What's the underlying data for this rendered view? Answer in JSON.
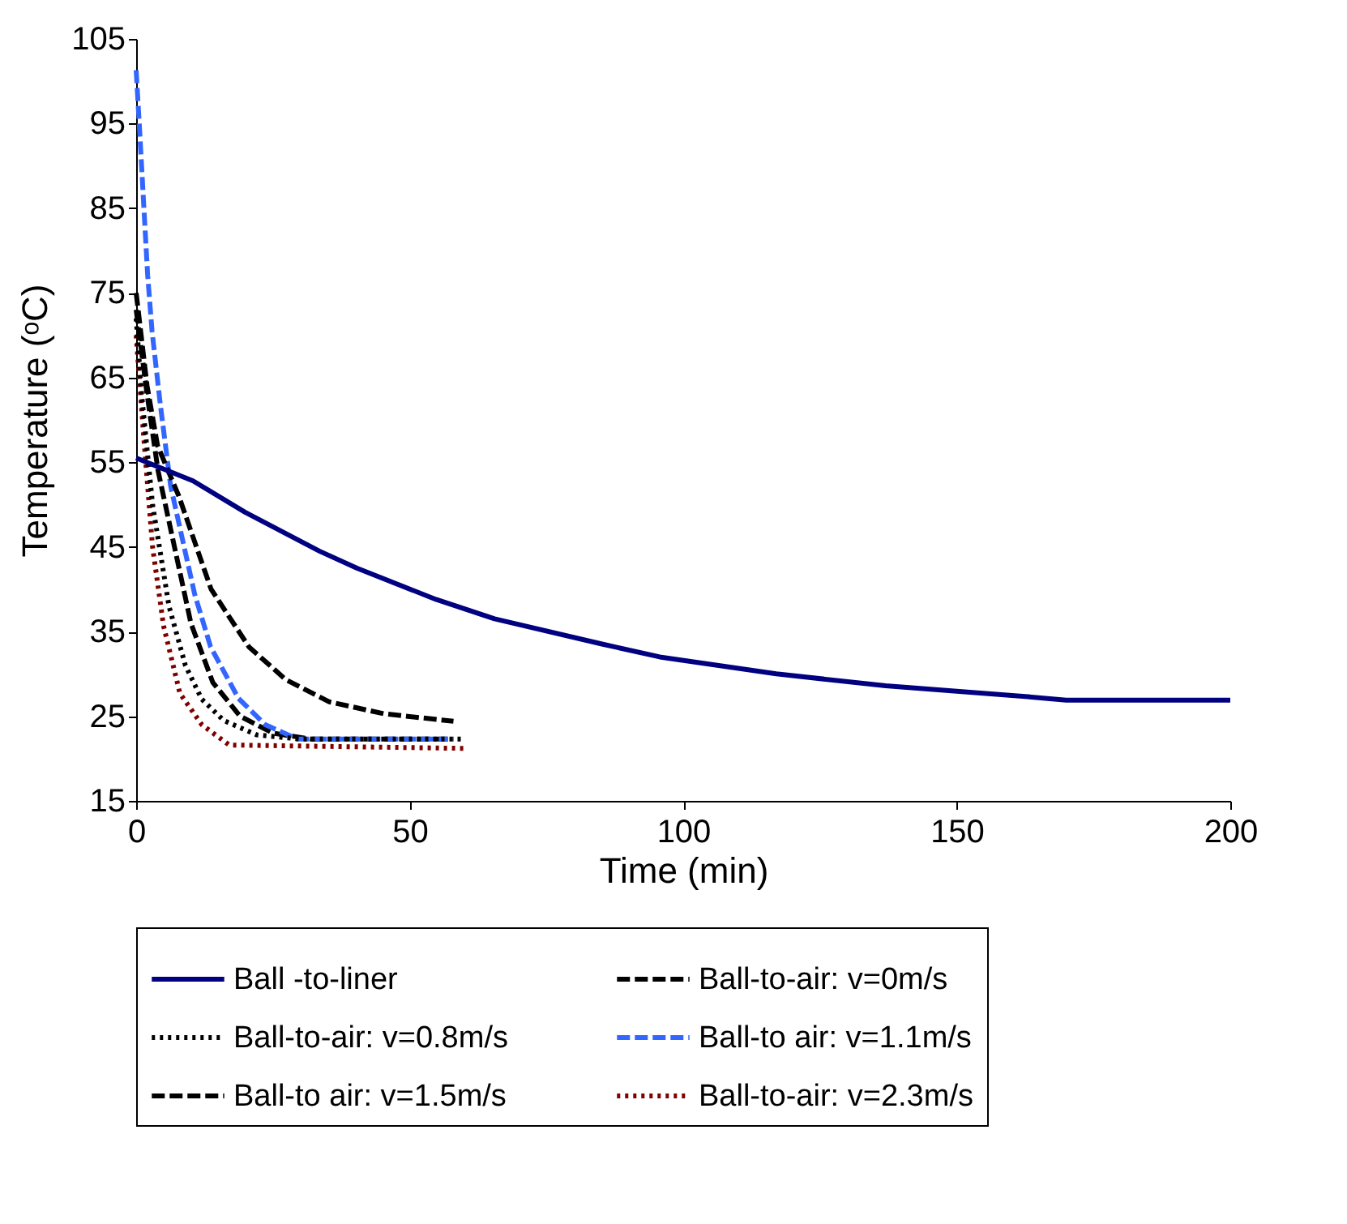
{
  "chart_data": {
    "type": "line",
    "xlabel": "Time (min)",
    "ylabel": "Temperature (ᵒC)",
    "xlim": [
      0,
      200
    ],
    "xticks": [
      0,
      50,
      100,
      150,
      200
    ],
    "ylim": [
      15,
      105
    ],
    "yticks": [
      15,
      25,
      35,
      45,
      55,
      65,
      75,
      85,
      95,
      105
    ],
    "grid": false,
    "legend": "bottom",
    "marker": "none",
    "series": [
      {
        "name": "Ball -to-liner",
        "color": "#000080",
        "line_style": "solid",
        "x": [
          0,
          10.4,
          19.9,
          33.5,
          40.3,
          54.8,
          65.5,
          85.3,
          95.7,
          117,
          137,
          163,
          170,
          200
        ],
        "values": [
          55.5,
          52.8,
          49.1,
          44.5,
          42.5,
          38.8,
          36.5,
          33.5,
          32,
          30,
          28.6,
          27.3,
          26.9,
          26.9
        ]
      },
      {
        "name": "Ball-to-air: v=0m/s",
        "color": "#000000",
        "line_style": "dashed",
        "x": [
          0,
          2,
          3.9,
          7.8,
          13.7,
          20.6,
          27.4,
          35.3,
          45.2,
          58
        ],
        "values": [
          75,
          64,
          57,
          51,
          40,
          33.2,
          29.3,
          26.7,
          25.3,
          24.4
        ]
      },
      {
        "name": "Ball-to-air: v=0.8m/s",
        "color": "#000000",
        "line_style": "dotted",
        "x": [
          0,
          1,
          3,
          6,
          9,
          12,
          16,
          22,
          30,
          60
        ],
        "values": [
          72,
          63,
          50,
          38,
          31,
          27,
          24.5,
          22.8,
          22.3,
          22.3
        ]
      },
      {
        "name": "Ball-to air: v=1.1m/s",
        "color": "#3366ff",
        "line_style": "dashed",
        "x": [
          0,
          0.6,
          1.4,
          2.1,
          2.9,
          4.4,
          6.3,
          8.8,
          10.7,
          13.6,
          18.7,
          23.6,
          29.5,
          57
        ],
        "values": [
          101.3,
          94.6,
          85.2,
          77.1,
          70.5,
          61.9,
          52.2,
          44.9,
          39.4,
          33.2,
          27.1,
          24,
          22.3,
          22.3
        ]
      },
      {
        "name": "Ball-to air: v=1.5m/s",
        "color": "#000000",
        "line_style": "dashed",
        "x": [
          0,
          2,
          4,
          7,
          10,
          14,
          19,
          25,
          32,
          58
        ],
        "values": [
          73,
          63,
          54,
          45,
          36,
          29,
          25,
          23,
          22.3,
          22.3
        ]
      },
      {
        "name": "Ball-to-air: v=2.3m/s",
        "color": "#800000",
        "line_style": "dotted",
        "x": [
          0,
          1.5,
          3,
          5,
          8,
          12,
          17,
          60
        ],
        "values": [
          70,
          57,
          45,
          35.7,
          27.7,
          24,
          21.6,
          21.2
        ]
      }
    ]
  }
}
